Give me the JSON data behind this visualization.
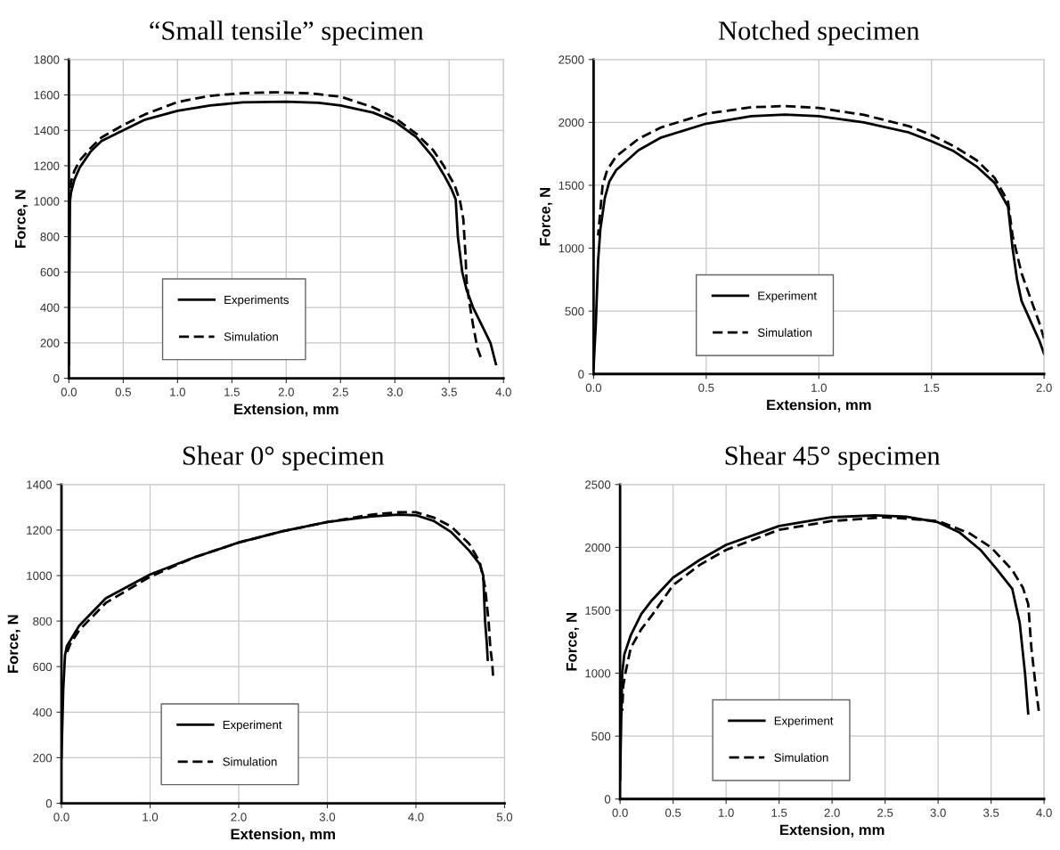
{
  "chart_data": [
    {
      "type": "line",
      "title": "“Small tensile” specimen",
      "xlabel": "Extension, mm",
      "ylabel": "Force, N",
      "grid": true,
      "legend": "bottom",
      "marker": "none",
      "xlim": [
        0,
        4
      ],
      "xticks": [
        {
          "value": 0,
          "label": "0.0"
        },
        {
          "value": 0.5,
          "label": "0.5"
        },
        {
          "value": 1,
          "label": "1.0"
        },
        {
          "value": 1.5,
          "label": "1.5"
        },
        {
          "value": 2,
          "label": "2.0"
        },
        {
          "value": 2.5,
          "label": "2.5"
        },
        {
          "value": 3,
          "label": "3.0"
        },
        {
          "value": 3.5,
          "label": "3.5"
        },
        {
          "value": 4,
          "label": "4.0"
        }
      ],
      "ylim": [
        0,
        1800
      ],
      "yticks": [
        0,
        200,
        400,
        600,
        800,
        1000,
        1200,
        1400,
        1600,
        1800
      ],
      "series": [
        {
          "name": "Experiments",
          "color": "#000000",
          "line_style": "solid",
          "x": [
            0,
            0.005,
            0.01,
            0.02,
            0.05,
            0.1,
            0.2,
            0.3,
            0.5,
            0.7,
            1.0,
            1.3,
            1.6,
            2.0,
            2.3,
            2.5,
            2.8,
            3.0,
            3.2,
            3.35,
            3.45,
            3.52,
            3.56,
            3.58,
            3.62,
            3.66,
            3.72,
            3.8,
            3.88,
            3.93
          ],
          "values": [
            80,
            600,
            1000,
            1050,
            1120,
            1190,
            1280,
            1340,
            1400,
            1460,
            1510,
            1540,
            1558,
            1562,
            1555,
            1540,
            1500,
            1450,
            1360,
            1250,
            1150,
            1070,
            1010,
            800,
            600,
            500,
            400,
            300,
            200,
            80
          ]
        },
        {
          "name": "Simulation",
          "color": "#000000",
          "line_style": "dashed",
          "x": [
            0.01,
            0.02,
            0.05,
            0.1,
            0.2,
            0.3,
            0.5,
            0.7,
            1.0,
            1.3,
            1.6,
            1.9,
            2.2,
            2.5,
            2.8,
            3.0,
            3.2,
            3.35,
            3.45,
            3.55,
            3.6,
            3.63,
            3.65,
            3.66,
            3.68,
            3.72,
            3.76,
            3.79
          ],
          "values": [
            1050,
            1110,
            1170,
            1230,
            1300,
            1360,
            1430,
            1490,
            1560,
            1595,
            1610,
            1615,
            1610,
            1590,
            1530,
            1470,
            1380,
            1290,
            1200,
            1090,
            1000,
            900,
            700,
            550,
            450,
            300,
            170,
            120
          ]
        }
      ]
    },
    {
      "type": "line",
      "title": "Notched specimen",
      "xlabel": "Extension, mm",
      "ylabel": "Force, N",
      "grid": true,
      "legend": "bottom",
      "marker": "none",
      "xlim": [
        0,
        2
      ],
      "xticks": [
        {
          "value": 0,
          "label": "0.0"
        },
        {
          "value": 0.5,
          "label": "0.5"
        },
        {
          "value": 1,
          "label": "1.0"
        },
        {
          "value": 1.5,
          "label": "1.5"
        },
        {
          "value": 2,
          "label": "2.0"
        }
      ],
      "ylim": [
        0,
        2500
      ],
      "yticks": [
        0,
        500,
        1000,
        1500,
        2000,
        2500
      ],
      "series": [
        {
          "name": "Experiment",
          "color": "#000000",
          "line_style": "solid",
          "x": [
            0,
            0.01,
            0.02,
            0.03,
            0.05,
            0.07,
            0.1,
            0.2,
            0.3,
            0.5,
            0.7,
            0.85,
            1.0,
            1.2,
            1.4,
            1.5,
            1.6,
            1.7,
            1.78,
            1.84,
            1.86,
            1.88,
            1.9,
            1.95,
            1.98,
            2.0
          ],
          "values": [
            50,
            400,
            900,
            1150,
            1400,
            1530,
            1620,
            1780,
            1880,
            1990,
            2050,
            2062,
            2050,
            2000,
            1920,
            1850,
            1770,
            1650,
            1520,
            1330,
            1000,
            750,
            580,
            380,
            260,
            160
          ]
        },
        {
          "name": "Simulation",
          "color": "#000000",
          "line_style": "dashed",
          "x": [
            0.02,
            0.03,
            0.04,
            0.06,
            0.1,
            0.2,
            0.3,
            0.5,
            0.7,
            0.85,
            1.0,
            1.2,
            1.4,
            1.5,
            1.6,
            1.7,
            1.78,
            1.84,
            1.86,
            1.9,
            1.95,
            1.98,
            2.0
          ],
          "values": [
            1100,
            1300,
            1500,
            1620,
            1730,
            1870,
            1960,
            2070,
            2120,
            2130,
            2115,
            2060,
            1970,
            1900,
            1810,
            1700,
            1560,
            1370,
            1100,
            800,
            550,
            400,
            280
          ]
        }
      ]
    },
    {
      "type": "line",
      "title": "Shear 0° specimen",
      "xlabel": "Extension, mm",
      "ylabel": "Force, N",
      "grid": true,
      "legend": "bottom",
      "marker": "none",
      "xlim": [
        0,
        5
      ],
      "xticks": [
        {
          "value": 0,
          "label": "0.0"
        },
        {
          "value": 1,
          "label": "1.0"
        },
        {
          "value": 2,
          "label": "2.0"
        },
        {
          "value": 3,
          "label": "3.0"
        },
        {
          "value": 4,
          "label": "4.0"
        },
        {
          "value": 5,
          "label": "5.0"
        }
      ],
      "ylim": [
        0,
        1400
      ],
      "yticks": [
        0,
        200,
        400,
        600,
        800,
        1000,
        1200,
        1400
      ],
      "series": [
        {
          "name": "Experiment",
          "color": "#000000",
          "line_style": "solid",
          "x": [
            0,
            0.02,
            0.04,
            0.06,
            0.2,
            0.5,
            1.0,
            1.5,
            2.0,
            2.5,
            3.0,
            3.5,
            3.8,
            4.0,
            4.2,
            4.4,
            4.6,
            4.72,
            4.76,
            4.78,
            4.8,
            4.81
          ],
          "values": [
            200,
            500,
            650,
            690,
            780,
            900,
            1005,
            1080,
            1145,
            1195,
            1235,
            1260,
            1268,
            1265,
            1240,
            1190,
            1110,
            1050,
            1000,
            800,
            700,
            630
          ]
        },
        {
          "name": "Simulation",
          "color": "#000000",
          "line_style": "dashed",
          "x": [
            0.05,
            0.1,
            0.2,
            0.5,
            1.0,
            1.5,
            2.0,
            2.5,
            3.0,
            3.5,
            3.8,
            4.0,
            4.2,
            4.4,
            4.6,
            4.72,
            4.78,
            4.82,
            4.84,
            4.86,
            4.87
          ],
          "values": [
            650,
            700,
            760,
            880,
            995,
            1080,
            1145,
            1195,
            1235,
            1268,
            1278,
            1278,
            1255,
            1215,
            1140,
            1060,
            950,
            800,
            680,
            620,
            560
          ]
        }
      ]
    },
    {
      "type": "line",
      "title": "Shear 45° specimen",
      "xlabel": "Extension, mm",
      "ylabel": "Force, N",
      "grid": true,
      "legend": "bottom",
      "marker": "none",
      "xlim": [
        0,
        4
      ],
      "xticks": [
        {
          "value": 0,
          "label": "0.0"
        },
        {
          "value": 0.5,
          "label": "0.5"
        },
        {
          "value": 1,
          "label": "1.0"
        },
        {
          "value": 1.5,
          "label": "1.5"
        },
        {
          "value": 2,
          "label": "2.0"
        },
        {
          "value": 2.5,
          "label": "2.5"
        },
        {
          "value": 3,
          "label": "3.0"
        },
        {
          "value": 3.5,
          "label": "3.5"
        },
        {
          "value": 4,
          "label": "4.0"
        }
      ],
      "ylim": [
        0,
        2500
      ],
      "yticks": [
        0,
        500,
        1000,
        1500,
        2000,
        2500
      ],
      "series": [
        {
          "name": "Experiment",
          "color": "#000000",
          "line_style": "solid",
          "x": [
            0,
            0.01,
            0.02,
            0.04,
            0.1,
            0.2,
            0.3,
            0.5,
            0.75,
            1.0,
            1.5,
            2.0,
            2.4,
            2.7,
            3.0,
            3.2,
            3.4,
            3.55,
            3.7,
            3.77,
            3.82,
            3.85
          ],
          "values": [
            150,
            600,
            1000,
            1150,
            1300,
            1470,
            1580,
            1760,
            1900,
            2020,
            2170,
            2240,
            2255,
            2245,
            2200,
            2120,
            1980,
            1830,
            1670,
            1400,
            1000,
            680
          ]
        },
        {
          "name": "Simulation",
          "color": "#000000",
          "line_style": "dashed",
          "x": [
            0.02,
            0.03,
            0.05,
            0.1,
            0.2,
            0.3,
            0.5,
            0.75,
            1.0,
            1.5,
            2.0,
            2.5,
            3.0,
            3.3,
            3.5,
            3.7,
            3.8,
            3.85,
            3.88,
            3.92,
            3.95
          ],
          "values": [
            700,
            900,
            1000,
            1200,
            1350,
            1460,
            1700,
            1860,
            1980,
            2140,
            2210,
            2240,
            2210,
            2110,
            2000,
            1820,
            1680,
            1550,
            1200,
            900,
            700
          ]
        }
      ]
    }
  ]
}
